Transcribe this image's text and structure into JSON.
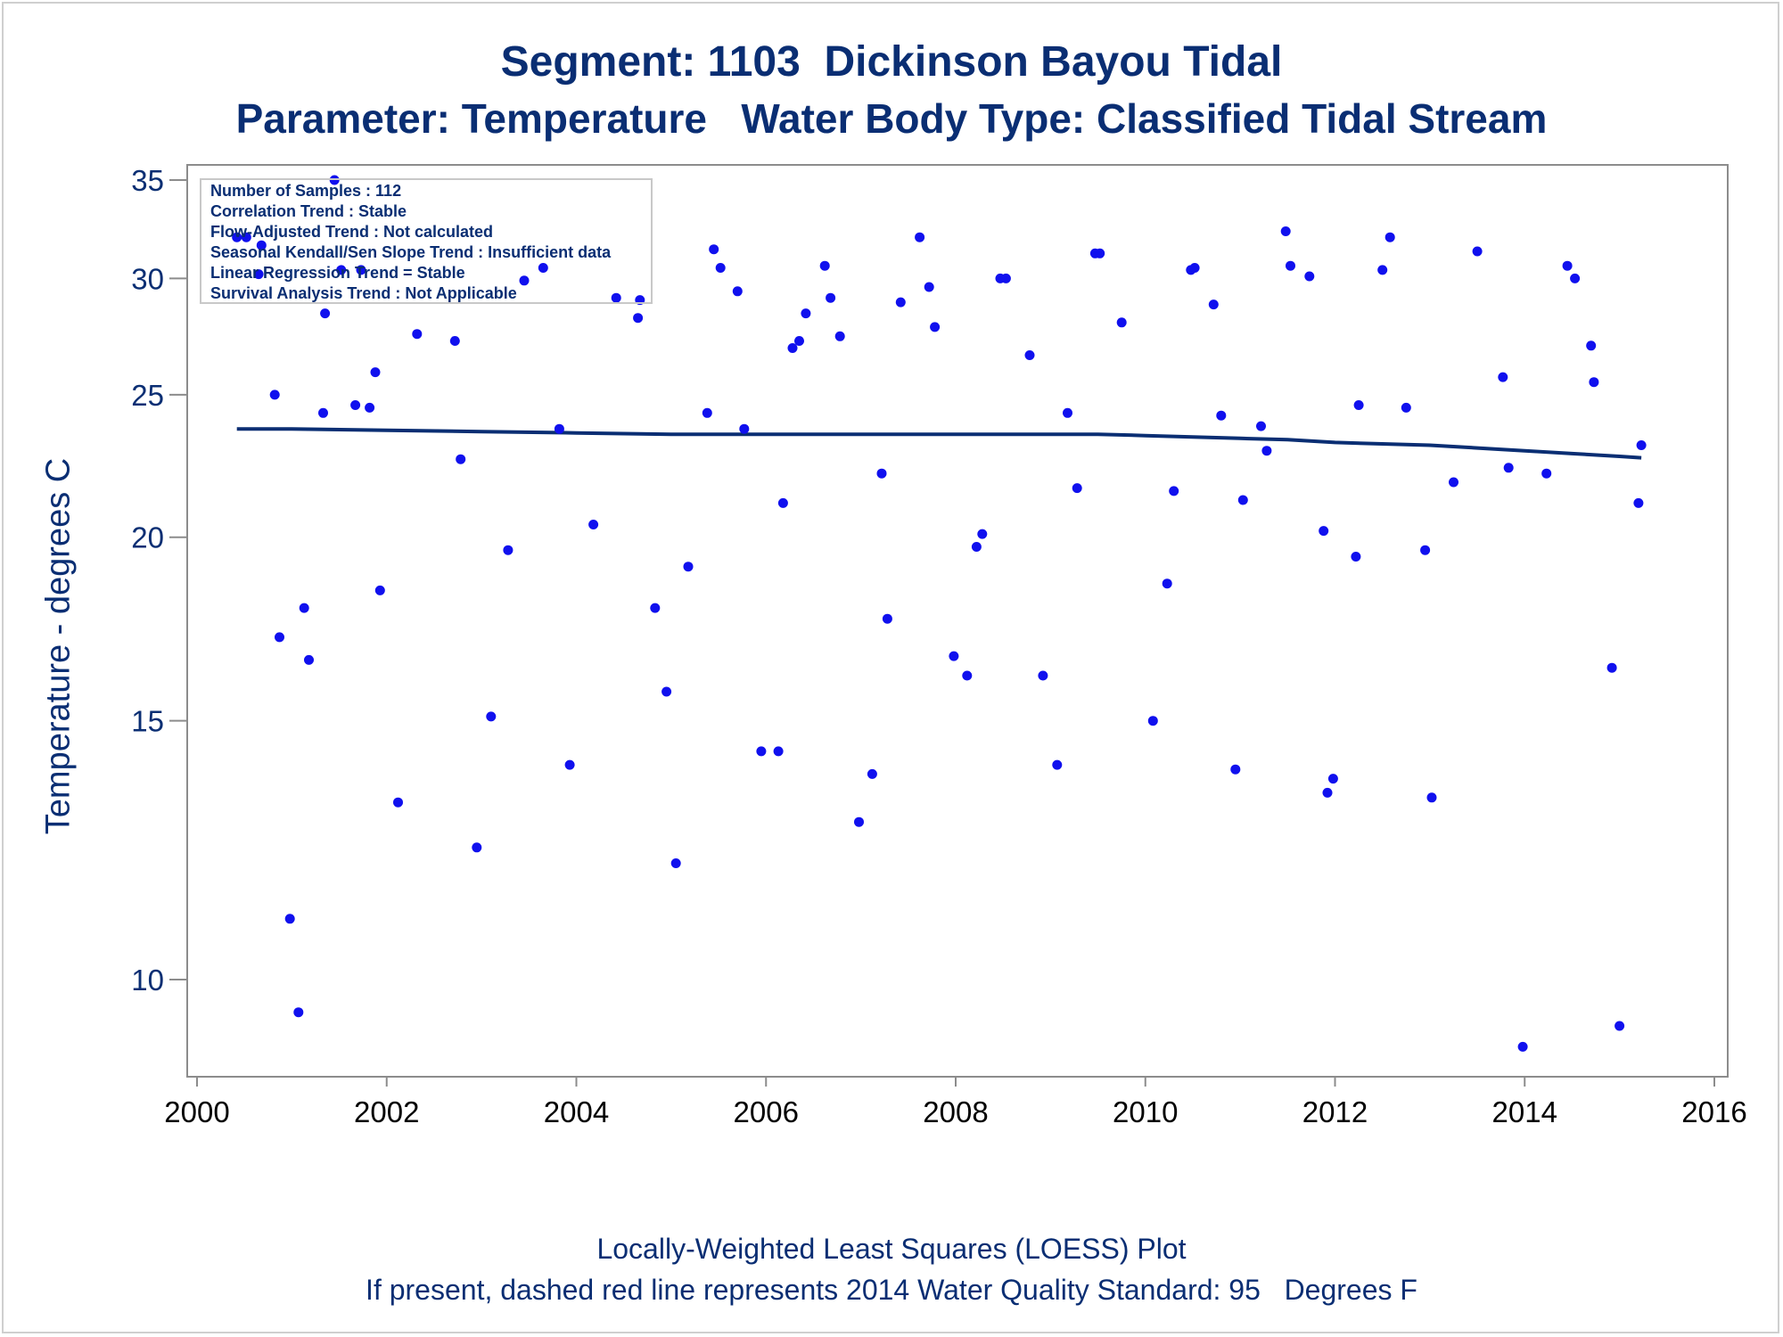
{
  "header": {
    "title": "Segment: 1103  Dickinson Bayou Tidal",
    "subtitle": "Parameter: Temperature   Water Body Type: Classified Tidal Stream"
  },
  "footer": {
    "line1": "Locally-Weighted Least Squares (LOESS) Plot",
    "line2": "If present, dashed red line represents 2014 Water Quality Standard: 95   Degrees F"
  },
  "stats_box": {
    "lines": [
      "Number of Samples : 112",
      "Correlation Trend : Stable",
      "Flow-Adjusted Trend : Not calculated",
      "Seasonal Kendall/Sen Slope Trend : Insufficient data",
      "Linear Regression Trend = Stable",
      "Survival Analysis Trend : Not Applicable"
    ]
  },
  "colors": {
    "text": "#0a2e73",
    "points": "#1010ee",
    "loess": "#0a2e73",
    "axis": "#8c8c8c"
  },
  "chart_data": {
    "type": "scatter",
    "ylabel": "Temperature - degrees C",
    "xlabel": "",
    "x_ticks": [
      2000,
      2002,
      2004,
      2006,
      2008,
      2010,
      2012,
      2014,
      2016
    ],
    "y_ticks": [
      10,
      15,
      20,
      25,
      30,
      35
    ],
    "xlim": [
      2000,
      2016
    ],
    "ylim": [
      9.2,
      35.3
    ],
    "y_scale": "log",
    "grid": false,
    "points": [
      [
        2000.42,
        32.0
      ],
      [
        2000.52,
        32.0
      ],
      [
        2000.65,
        30.2
      ],
      [
        2000.68,
        31.6
      ],
      [
        2000.82,
        25.0
      ],
      [
        2000.87,
        17.1
      ],
      [
        2000.98,
        11.0
      ],
      [
        2001.07,
        9.5
      ],
      [
        2001.13,
        17.9
      ],
      [
        2001.18,
        16.5
      ],
      [
        2001.33,
        24.3
      ],
      [
        2001.35,
        28.4
      ],
      [
        2001.45,
        35.0
      ],
      [
        2001.52,
        30.4
      ],
      [
        2001.67,
        24.6
      ],
      [
        2001.73,
        30.4
      ],
      [
        2001.82,
        24.5
      ],
      [
        2001.88,
        25.9
      ],
      [
        2001.93,
        18.4
      ],
      [
        2002.12,
        13.2
      ],
      [
        2002.32,
        27.5
      ],
      [
        2002.72,
        27.2
      ],
      [
        2002.78,
        22.6
      ],
      [
        2002.95,
        12.3
      ],
      [
        2003.1,
        15.1
      ],
      [
        2003.28,
        19.6
      ],
      [
        2003.45,
        29.9
      ],
      [
        2003.65,
        30.5
      ],
      [
        2003.82,
        23.7
      ],
      [
        2003.93,
        14.0
      ],
      [
        2004.18,
        20.4
      ],
      [
        2004.42,
        29.1
      ],
      [
        2004.65,
        28.2
      ],
      [
        2004.67,
        29.0
      ],
      [
        2004.83,
        17.9
      ],
      [
        2004.95,
        15.7
      ],
      [
        2005.05,
        12.0
      ],
      [
        2005.18,
        19.1
      ],
      [
        2005.38,
        24.3
      ],
      [
        2005.45,
        31.4
      ],
      [
        2005.52,
        30.5
      ],
      [
        2005.7,
        29.4
      ],
      [
        2005.77,
        23.7
      ],
      [
        2005.95,
        14.3
      ],
      [
        2006.13,
        14.3
      ],
      [
        2006.18,
        21.1
      ],
      [
        2006.28,
        26.9
      ],
      [
        2006.35,
        27.2
      ],
      [
        2006.42,
        28.4
      ],
      [
        2006.62,
        30.6
      ],
      [
        2006.68,
        29.1
      ],
      [
        2006.78,
        27.4
      ],
      [
        2006.98,
        12.8
      ],
      [
        2007.12,
        13.8
      ],
      [
        2007.22,
        22.1
      ],
      [
        2007.28,
        17.6
      ],
      [
        2007.42,
        28.9
      ],
      [
        2007.62,
        32.0
      ],
      [
        2007.72,
        29.6
      ],
      [
        2007.78,
        27.8
      ],
      [
        2007.98,
        16.6
      ],
      [
        2008.12,
        16.1
      ],
      [
        2008.22,
        19.7
      ],
      [
        2008.28,
        20.1
      ],
      [
        2008.47,
        30.0
      ],
      [
        2008.53,
        30.0
      ],
      [
        2008.78,
        26.6
      ],
      [
        2008.92,
        16.1
      ],
      [
        2009.07,
        14.0
      ],
      [
        2009.18,
        24.3
      ],
      [
        2009.28,
        21.6
      ],
      [
        2009.47,
        31.2
      ],
      [
        2009.52,
        31.2
      ],
      [
        2009.75,
        28.0
      ],
      [
        2010.08,
        15.0
      ],
      [
        2010.23,
        18.6
      ],
      [
        2010.3,
        21.5
      ],
      [
        2010.48,
        30.4
      ],
      [
        2010.52,
        30.5
      ],
      [
        2010.72,
        28.8
      ],
      [
        2010.8,
        24.2
      ],
      [
        2010.95,
        13.9
      ],
      [
        2011.03,
        21.2
      ],
      [
        2011.22,
        23.8
      ],
      [
        2011.28,
        22.9
      ],
      [
        2011.48,
        32.3
      ],
      [
        2011.53,
        30.6
      ],
      [
        2011.73,
        30.1
      ],
      [
        2011.88,
        20.2
      ],
      [
        2011.92,
        13.4
      ],
      [
        2011.98,
        13.7
      ],
      [
        2012.22,
        19.4
      ],
      [
        2012.25,
        24.6
      ],
      [
        2012.5,
        30.4
      ],
      [
        2012.58,
        32.0
      ],
      [
        2012.75,
        24.5
      ],
      [
        2012.95,
        19.6
      ],
      [
        2013.02,
        13.3
      ],
      [
        2013.25,
        21.8
      ],
      [
        2013.5,
        31.3
      ],
      [
        2013.77,
        25.7
      ],
      [
        2013.83,
        22.3
      ],
      [
        2013.98,
        9.0
      ],
      [
        2014.23,
        22.1
      ],
      [
        2014.45,
        30.6
      ],
      [
        2014.53,
        30.0
      ],
      [
        2014.7,
        27.0
      ],
      [
        2014.73,
        25.5
      ],
      [
        2014.92,
        16.3
      ],
      [
        2015.0,
        9.3
      ],
      [
        2015.2,
        21.1
      ],
      [
        2015.23,
        23.1
      ]
    ],
    "series": [
      {
        "style": "line",
        "x": [
          2000.42,
          2001.0,
          2002.0,
          2003.0,
          2004.0,
          2005.0,
          2006.0,
          2007.0,
          2008.0,
          2009.0,
          2009.5,
          2010.0,
          2010.5,
          2011.0,
          2011.5,
          2012.0,
          2012.5,
          2013.0,
          2013.5,
          2014.0,
          2014.5,
          2015.0,
          2015.23
        ],
        "y": [
          23.7,
          23.7,
          23.65,
          23.6,
          23.55,
          23.5,
          23.5,
          23.5,
          23.5,
          23.5,
          23.5,
          23.45,
          23.4,
          23.35,
          23.3,
          23.2,
          23.15,
          23.1,
          23.0,
          22.9,
          22.8,
          22.7,
          22.65
        ]
      }
    ]
  }
}
